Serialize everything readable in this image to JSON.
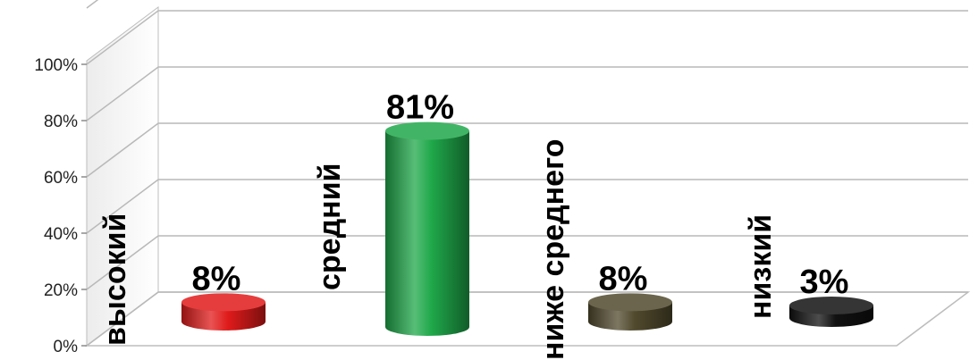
{
  "chart_data": {
    "type": "bar",
    "style": "3d-cylinder",
    "categories": [
      "высокий",
      "средний",
      "ниже среднего",
      "низкий"
    ],
    "values": [
      8,
      81,
      8,
      3
    ],
    "value_labels": [
      "8%",
      "81%",
      "8%",
      "3%"
    ],
    "colors": [
      "#e01b1b",
      "#1fa84a",
      "#514a2e",
      "#111111"
    ],
    "ylim": [
      0,
      100
    ],
    "yticks": [
      "0%",
      "20%",
      "40%",
      "60%",
      "80%",
      "100%"
    ],
    "grid": true,
    "legend": "none",
    "title": "",
    "xlabel": "",
    "ylabel": ""
  }
}
